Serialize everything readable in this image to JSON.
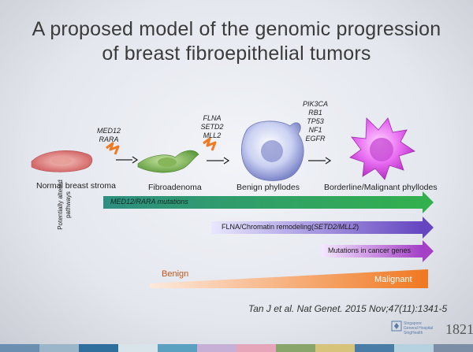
{
  "title": {
    "line1": "A proposed model of the genomic progression",
    "line2": "of breast fibroepithelial tumors"
  },
  "stages": {
    "normal": "Normal breast stroma",
    "fibroadenoma": "Fibroadenoma",
    "benign_phyllodes": "Benign phyllodes",
    "borderline_malignant": "Borderline/Malignant phyllodes"
  },
  "genes": {
    "step1": "MED12\nRARA",
    "step2": "FLNA\nSETD2\nMLL2",
    "step3": "PIK3CA\nRB1\nTP53\nNF1\nEGFR"
  },
  "pathways": {
    "axis_label": "Potentially altered pathways",
    "bar1": "MED12/RARA mutations",
    "bar2_prefix": "FLNA/Chromatin remodeling(",
    "bar2_italic": "SETD2/MLL2",
    "bar2_suffix": ")",
    "bar3": "Mutations in cancer genes"
  },
  "gradient": {
    "start_label": "Benign",
    "end_label": "Malignant"
  },
  "citation": "Tan J et al. Nat Genet. 2015 Nov;47(11):1341-5",
  "logo": {
    "line1": "Singapore",
    "line2": "General Hospital",
    "line3": "SingHealth",
    "year": "1821"
  },
  "colors": {
    "bar_green": "#2aa889",
    "bar_purple": "#7b52c9",
    "bar_magenta": "#b04fc8",
    "benign_orange": "#fbe2d2",
    "malignant_orange": "#f07c24"
  }
}
